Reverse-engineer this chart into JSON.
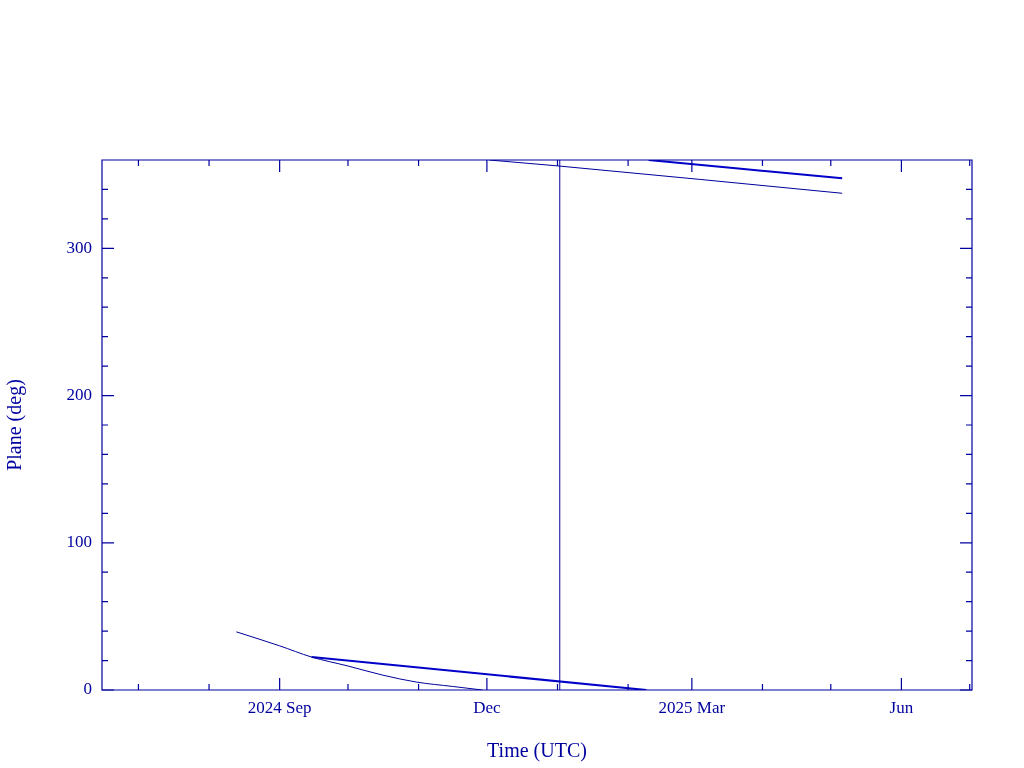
{
  "chart_data": {
    "type": "line",
    "xlabel": "Time (UTC)",
    "ylabel": "Plane (deg)",
    "xlim": [
      "2024-06-15",
      "2025-07-02"
    ],
    "xticks": [
      {
        "value": "2024-07-01",
        "label": null
      },
      {
        "value": "2024-08-01",
        "label": null
      },
      {
        "value": "2024-09-01",
        "label": "2024 Sep"
      },
      {
        "value": "2024-10-01",
        "label": null
      },
      {
        "value": "2024-11-01",
        "label": null
      },
      {
        "value": "2024-12-01",
        "label": "Dec"
      },
      {
        "value": "2025-01-01",
        "label": null
      },
      {
        "value": "2025-02-01",
        "label": null
      },
      {
        "value": "2025-03-01",
        "label": "2025 Mar"
      },
      {
        "value": "2025-04-01",
        "label": null
      },
      {
        "value": "2025-05-01",
        "label": null
      },
      {
        "value": "2025-06-01",
        "label": "Jun"
      },
      {
        "value": "2025-07-01",
        "label": null
      }
    ],
    "ylim": [
      0,
      360
    ],
    "yticks": [
      0,
      {
        "value": 20,
        "label": null
      },
      {
        "value": 40,
        "label": null
      },
      {
        "value": 60,
        "label": null
      },
      {
        "value": 80,
        "label": null
      },
      100,
      {
        "value": 120,
        "label": null
      },
      {
        "value": 140,
        "label": null
      },
      {
        "value": 160,
        "label": null
      },
      {
        "value": 180,
        "label": null
      },
      200,
      {
        "value": 220,
        "label": null
      },
      {
        "value": 240,
        "label": null
      },
      {
        "value": 260,
        "label": null
      },
      {
        "value": 280,
        "label": null
      },
      300,
      {
        "value": 320,
        "label": null
      },
      {
        "value": 340,
        "label": null
      }
    ],
    "series": [
      {
        "color": "#00009c",
        "x": [
          "2024-08-13",
          "2024-09-01",
          "2024-09-15",
          "2024-10-01",
          "2024-10-16",
          "2024-10-31",
          "2024-11-16",
          "2024-11-29",
          "2024-12-01",
          "2024-12-02",
          "2025-01-01",
          "2025-05-06"
        ],
        "values": [
          39.5,
          30,
          22.4,
          16.3,
          10.2,
          5.4,
          2.4,
          0,
          null,
          360,
          356,
          337.4
        ]
      },
      {
        "color": "#0000c8",
        "x": [
          "2024-09-15",
          "2025-02-09",
          "2025-02-09T12:00",
          "2025-02-10",
          "2025-05-06"
        ],
        "values": [
          22.4,
          0,
          null,
          360,
          347.6
        ]
      }
    ],
    "ref_lines": [
      {
        "axis": "x",
        "value": "2025-01-02",
        "color": "#00009c"
      }
    ],
    "grid": false,
    "legend": false,
    "marker": "none",
    "line_style": "solid"
  }
}
